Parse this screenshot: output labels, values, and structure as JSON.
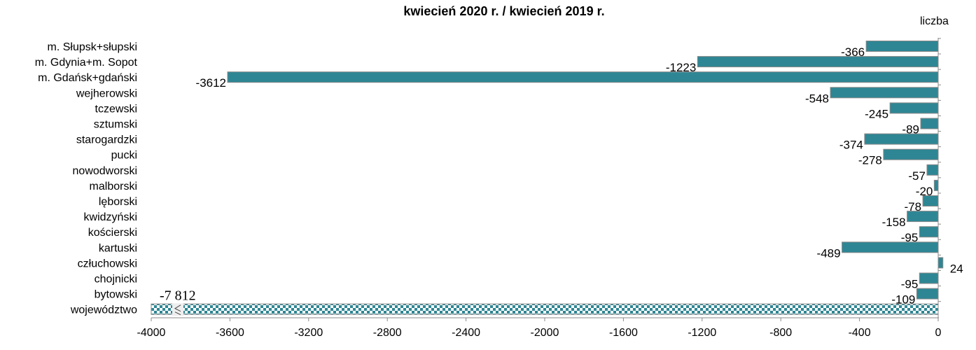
{
  "colors": {
    "bar": "#2e8694",
    "bar_edge": "#8a8a8a",
    "axis": "#8a8a8a"
  },
  "chart_data": {
    "type": "bar",
    "orientation": "horizontal",
    "title": "kwiecień 2020 r. / kwiecień 2019 r.",
    "unit": "liczba",
    "xlim": [
      -4000,
      0
    ],
    "xticks": [
      -4000,
      -3600,
      -3200,
      -2800,
      -2400,
      -2000,
      -1600,
      -1200,
      -800,
      -400,
      0
    ],
    "categories": [
      "m. Słupsk+słupski",
      "m. Gdynia+m. Sopot",
      "m. Gdańsk+gdański",
      "wejherowski",
      "tczewski",
      "sztumski",
      "starogardzki",
      "pucki",
      "nowodworski",
      "malborski",
      "lęborski",
      "kwidzyński",
      "kościerski",
      "kartuski",
      "człuchowski",
      "chojnicki",
      "bytowski",
      "województwo"
    ],
    "values": [
      -366,
      -1223,
      -3612,
      -548,
      -245,
      -89,
      -374,
      -278,
      -57,
      -20,
      -78,
      -158,
      -95,
      -489,
      24,
      -95,
      -109,
      -7812
    ],
    "value_labels": [
      "-366",
      "-1223",
      "-3612",
      "-548",
      "-245",
      "-89",
      "-374",
      "-278",
      "-57",
      "-20",
      "-78",
      "-158",
      "-95",
      "-489",
      "24",
      "-95",
      "-109",
      "-7 812"
    ],
    "axis_break_on": "województwo"
  }
}
